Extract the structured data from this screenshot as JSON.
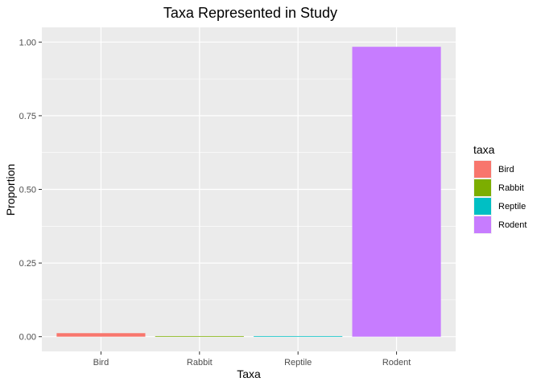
{
  "chart_data": {
    "type": "bar",
    "title": "Taxa Represented in Study",
    "xlabel": "Taxa",
    "ylabel": "Proportion",
    "categories": [
      "Bird",
      "Rabbit",
      "Reptile",
      "Rodent"
    ],
    "values": [
      0.012,
      0.002,
      0.002,
      0.984
    ],
    "ylim": [
      0,
      1.0
    ],
    "yticks": [
      "0.00",
      "0.25",
      "0.50",
      "0.75",
      "1.00"
    ],
    "ytick_values": [
      0,
      0.25,
      0.5,
      0.75,
      1.0
    ],
    "grid": true,
    "legend": {
      "title": "taxa",
      "placement": "right",
      "entries": [
        "Bird",
        "Rabbit",
        "Reptile",
        "Rodent"
      ]
    },
    "colors": [
      "#F8766D",
      "#7CAE00",
      "#00BFC4",
      "#C77CFF"
    ],
    "panel_background": "#EBEBEB"
  }
}
